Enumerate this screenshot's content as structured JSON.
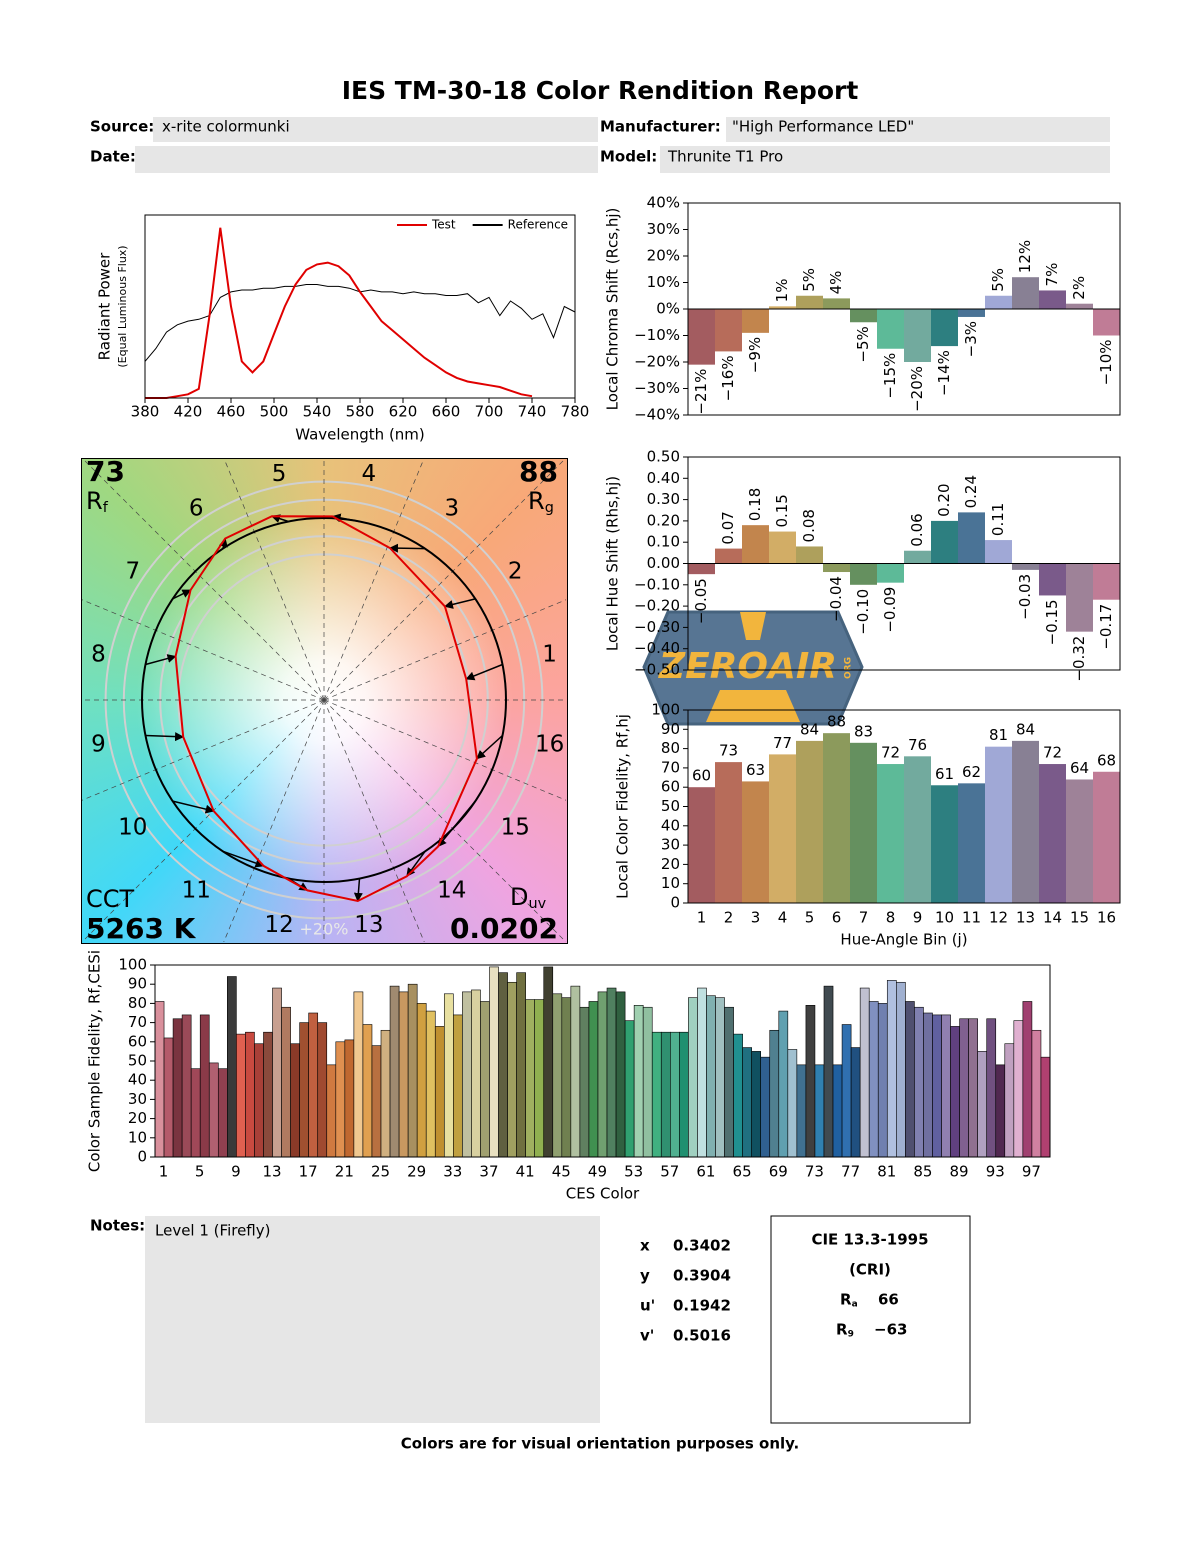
{
  "header": {
    "title": "IES TM-30-18 Color Rendition Report",
    "source_label": "Source:",
    "source": "x-rite colormunki",
    "date_label": "Date:",
    "manufacturer_label": "Manufacturer:",
    "manufacturer": "\"High Performance LED\"",
    "model_label": "Model:",
    "model": "Thrunite T1 Pro"
  },
  "chart_data": [
    {
      "type": "line",
      "xlabel": "Wavelength (nm)",
      "ylabel": "Radiant Power",
      "ylabel_note": "(Equal Luminous Flux)",
      "x": [
        380,
        390,
        400,
        410,
        420,
        430,
        440,
        450,
        460,
        470,
        480,
        490,
        500,
        510,
        520,
        530,
        540,
        550,
        560,
        570,
        580,
        590,
        600,
        610,
        620,
        630,
        640,
        650,
        660,
        670,
        680,
        690,
        700,
        710,
        720,
        730,
        740,
        750,
        760,
        770,
        780
      ],
      "xlim": [
        380,
        780
      ],
      "xticks": [
        380,
        420,
        460,
        500,
        540,
        580,
        620,
        660,
        700,
        740,
        780
      ],
      "ylim": [
        0,
        1
      ],
      "legend": "upper right",
      "series": [
        {
          "name": "Test",
          "color": "#e00000",
          "values": [
            0,
            0,
            0,
            0.01,
            0.02,
            0.05,
            0.45,
            0.93,
            0.5,
            0.2,
            0.14,
            0.2,
            0.35,
            0.5,
            0.62,
            0.7,
            0.73,
            0.74,
            0.72,
            0.67,
            0.58,
            0.5,
            0.42,
            0.37,
            0.32,
            0.27,
            0.22,
            0.18,
            0.14,
            0.11,
            0.09,
            0.08,
            0.07,
            0.06,
            0.04,
            0.02,
            0.01,
            null,
            null,
            null,
            null
          ]
        },
        {
          "name": "Reference",
          "color": "#000000",
          "values": [
            0.2,
            0.27,
            0.36,
            0.4,
            0.42,
            0.43,
            0.45,
            0.55,
            0.58,
            0.59,
            0.59,
            0.6,
            0.6,
            0.61,
            0.61,
            0.62,
            0.62,
            0.61,
            0.61,
            0.6,
            0.58,
            0.59,
            0.58,
            0.58,
            0.57,
            0.58,
            0.57,
            0.57,
            0.56,
            0.56,
            0.57,
            0.52,
            0.55,
            0.45,
            0.53,
            0.49,
            0.43,
            0.46,
            0.33,
            0.5,
            0.47
          ]
        }
      ]
    },
    {
      "type": "bar",
      "ylabel": "Local Chroma Shift (Rcs,hj)",
      "ylim": [
        -40,
        40
      ],
      "data_label_rotation": 90,
      "yticks": [
        {
          "value": -40,
          "label": "−40%"
        },
        {
          "value": -30,
          "label": "−30%"
        },
        {
          "value": -20,
          "label": "−20%"
        },
        {
          "value": -10,
          "label": "−10%"
        },
        {
          "value": 0,
          "label": "0%"
        },
        {
          "value": 10,
          "label": "10%"
        },
        {
          "value": 20,
          "label": "20%"
        },
        {
          "value": 30,
          "label": "30%"
        },
        {
          "value": 40,
          "label": "40%"
        }
      ],
      "values": [
        -21,
        -16,
        -9,
        1,
        5,
        4,
        -5,
        -15,
        -20,
        -14,
        -3,
        5,
        12,
        7,
        2,
        -10
      ],
      "value_labels": [
        "−21%",
        "−16%",
        "−9%",
        "1%",
        "5%",
        "4%",
        "−5%",
        "−15%",
        "−20%",
        "−14%",
        "−3%",
        "5%",
        "12%",
        "7%",
        "2%",
        "−10%"
      ],
      "colors": [
        "#a35c60",
        "#b76c5a",
        "#c2854d",
        "#d2ad66",
        "#aea05c",
        "#8c9a5c",
        "#65905f",
        "#5dba98",
        "#72aa9e",
        "#2d7f80",
        "#4a7396",
        "#a0a8d6",
        "#888094",
        "#7a5a8a",
        "#9e8298",
        "#c07c96"
      ]
    },
    {
      "type": "bar",
      "ylabel": "Local Hue Shift (Rhs,hj)",
      "ylim": [
        -0.5,
        0.5
      ],
      "data_label_rotation": 90,
      "yticks": [
        {
          "value": -0.5,
          "label": "−0.50"
        },
        {
          "value": -0.4,
          "label": "−0.40"
        },
        {
          "value": -0.3,
          "label": "−0.30"
        },
        {
          "value": -0.2,
          "label": "−0.20"
        },
        {
          "value": -0.1,
          "label": "−0.10"
        },
        {
          "value": 0,
          "label": "0.00"
        },
        {
          "value": 0.1,
          "label": "0.10"
        },
        {
          "value": 0.2,
          "label": "0.20"
        },
        {
          "value": 0.3,
          "label": "0.30"
        },
        {
          "value": 0.4,
          "label": "0.40"
        },
        {
          "value": 0.5,
          "label": "0.50"
        }
      ],
      "values": [
        -0.05,
        0.07,
        0.18,
        0.15,
        0.08,
        -0.04,
        -0.1,
        -0.09,
        0.06,
        0.2,
        0.24,
        0.11,
        -0.03,
        -0.15,
        -0.32,
        -0.17
      ],
      "value_labels": [
        "−0.05",
        "0.07",
        "0.18",
        "0.15",
        "0.08",
        "−0.04",
        "−0.10",
        "−0.09",
        "0.06",
        "0.20",
        "0.24",
        "0.11",
        "−0.03",
        "−0.15",
        "−0.32",
        "−0.17"
      ],
      "colors": [
        "#a35c60",
        "#b76c5a",
        "#c2854d",
        "#d2ad66",
        "#aea05c",
        "#8c9a5c",
        "#65905f",
        "#5dba98",
        "#72aa9e",
        "#2d7f80",
        "#4a7396",
        "#a0a8d6",
        "#888094",
        "#7a5a8a",
        "#9e8298",
        "#c07c96"
      ]
    },
    {
      "type": "bar",
      "ylabel": "Local Color Fidelity, Rf,hj",
      "xlabel": "Hue-Angle Bin (j)",
      "ylim": [
        0,
        100
      ],
      "data_labels": true,
      "yticks": [
        0,
        10,
        20,
        30,
        40,
        50,
        60,
        70,
        80,
        90,
        100
      ],
      "categories": [
        1,
        2,
        3,
        4,
        5,
        6,
        7,
        8,
        9,
        10,
        11,
        12,
        13,
        14,
        15,
        16
      ],
      "values": [
        60,
        73,
        63,
        77,
        84,
        88,
        83,
        72,
        76,
        61,
        62,
        81,
        84,
        72,
        64,
        68
      ],
      "colors": [
        "#a35c60",
        "#b76c5a",
        "#c2854d",
        "#d2ad66",
        "#aea05c",
        "#8c9a5c",
        "#65905f",
        "#5dba98",
        "#72aa9e",
        "#2d7f80",
        "#4a7396",
        "#a0a8d6",
        "#888094",
        "#7a5a8a",
        "#9e8298",
        "#c07c96"
      ]
    },
    {
      "type": "vector",
      "rf": 73,
      "rf_label": "Rf",
      "rg": 88,
      "rg_label": "Rg",
      "cct_label": "CCT",
      "cct": "5263 K",
      "duv_label": "Duv",
      "duv": 0.0202,
      "scale_label": "+20%",
      "categories": [
        1,
        2,
        3,
        4,
        5,
        6,
        7,
        8,
        9,
        10,
        11,
        12,
        13,
        14,
        15,
        16
      ]
    },
    {
      "type": "bar",
      "ylabel": "Color Sample Fidelity, Rf,CESi",
      "xlabel": "CES Color",
      "ylim": [
        0,
        100
      ],
      "bar_outline": true,
      "yticks": [
        0,
        10,
        20,
        30,
        40,
        50,
        60,
        70,
        80,
        90,
        100
      ],
      "categories": [
        1,
        null,
        null,
        null,
        5,
        null,
        null,
        null,
        9,
        null,
        null,
        null,
        13,
        null,
        null,
        null,
        17,
        null,
        null,
        null,
        21,
        null,
        null,
        null,
        25,
        null,
        null,
        null,
        29,
        null,
        null,
        null,
        33,
        null,
        null,
        null,
        37,
        null,
        null,
        null,
        41,
        null,
        null,
        null,
        45,
        null,
        null,
        null,
        49,
        null,
        null,
        null,
        53,
        null,
        null,
        null,
        57,
        null,
        null,
        null,
        61,
        null,
        null,
        null,
        65,
        null,
        null,
        null,
        69,
        null,
        null,
        null,
        73,
        null,
        null,
        null,
        77,
        null,
        null,
        null,
        81,
        null,
        null,
        null,
        85,
        null,
        null,
        null,
        89,
        null,
        null,
        null,
        93,
        null,
        null,
        null,
        97,
        null,
        null
      ],
      "values": [
        81,
        62,
        72,
        74,
        46,
        74,
        49,
        46,
        94,
        64,
        65,
        59,
        65,
        88,
        78,
        59,
        70,
        75,
        70,
        48,
        60,
        61,
        86,
        69,
        58,
        66,
        89,
        86,
        90,
        80,
        76,
        68,
        85,
        74,
        86,
        87,
        81,
        99,
        96,
        91,
        96,
        82,
        82,
        99,
        85,
        83,
        89,
        78,
        81,
        86,
        88,
        86,
        71,
        79,
        78,
        65,
        65,
        65,
        65,
        83,
        88,
        84,
        83,
        78,
        64,
        57,
        55,
        52,
        66,
        76,
        56,
        48,
        79,
        48,
        89,
        48,
        69,
        57,
        88,
        81,
        80,
        92,
        91,
        81,
        78,
        75,
        74,
        74,
        68,
        72,
        72,
        55,
        72,
        48,
        59,
        71,
        81,
        66,
        52
      ],
      "colors": [
        "#d9909c",
        "#b45a6a",
        "#7a3440",
        "#9a4a58",
        "#a04858",
        "#8a3a48",
        "#b06070",
        "#904050",
        "#3a3a3a",
        "#e06050",
        "#c84a40",
        "#a84038",
        "#8a4a3c",
        "#c8a090",
        "#b07a60",
        "#8a3a28",
        "#a05030",
        "#c06040",
        "#a04a30",
        "#d07a40",
        "#e09050",
        "#c06830",
        "#f0c890",
        "#e0a050",
        "#b87040",
        "#d0b080",
        "#a08a70",
        "#c89860",
        "#a89060",
        "#d0a040",
        "#e0c060",
        "#c09030",
        "#e8e0a0",
        "#c0a040",
        "#c0c0a0",
        "#d8d0a0",
        "#a0a070",
        "#e8e0c0",
        "#606040",
        "#a0a060",
        "#707040",
        "#a0b060",
        "#90b050",
        "#404030",
        "#90a070",
        "#708050",
        "#b0c0a0",
        "#608060",
        "#409050",
        "#70a070",
        "#508060",
        "#306040",
        "#30a070",
        "#a0d0b0",
        "#90c0a0",
        "#40b080",
        "#309070",
        "#50b090",
        "#209070",
        "#a0d0c0",
        "#c0e0e0",
        "#80b0b0",
        "#a0c0c0",
        "#507070",
        "#209090",
        "#207080",
        "#105060",
        "#306090",
        "#508090",
        "#60a0b0",
        "#a0c0d0",
        "#407090",
        "#404040",
        "#3080b0",
        "#404a50",
        "#2060a0",
        "#3070b0",
        "#205080",
        "#c0c0d0",
        "#8090c0",
        "#7080b0",
        "#b0c0e0",
        "#a0b0d0",
        "#505070",
        "#8080b0",
        "#7070a0",
        "#6060a0",
        "#9080b0",
        "#604080",
        "#806090",
        "#907090",
        "#b0a0c0",
        "#705080",
        "#502850",
        "#c0a0c0",
        "#e0b0d0",
        "#a04070",
        "#d080a0",
        "#b04070"
      ]
    }
  ],
  "notes": {
    "label": "Notes:",
    "text": "Level 1 (Firefly)"
  },
  "chromaticity": {
    "rows": [
      [
        "x",
        0.3402
      ],
      [
        "y",
        0.3904
      ],
      [
        "u'",
        0.1942
      ],
      [
        "v'",
        0.5016
      ]
    ]
  },
  "cri": {
    "title": "CIE 13.3-1995",
    "subtitle": "(CRI)",
    "rows": [
      [
        "Ra",
        66
      ],
      [
        "R9",
        "−63"
      ]
    ]
  },
  "footer": "Colors are for visual orientation purposes only.",
  "watermark": {
    "text": "ZEROAIR",
    "suffix": "ORG"
  }
}
